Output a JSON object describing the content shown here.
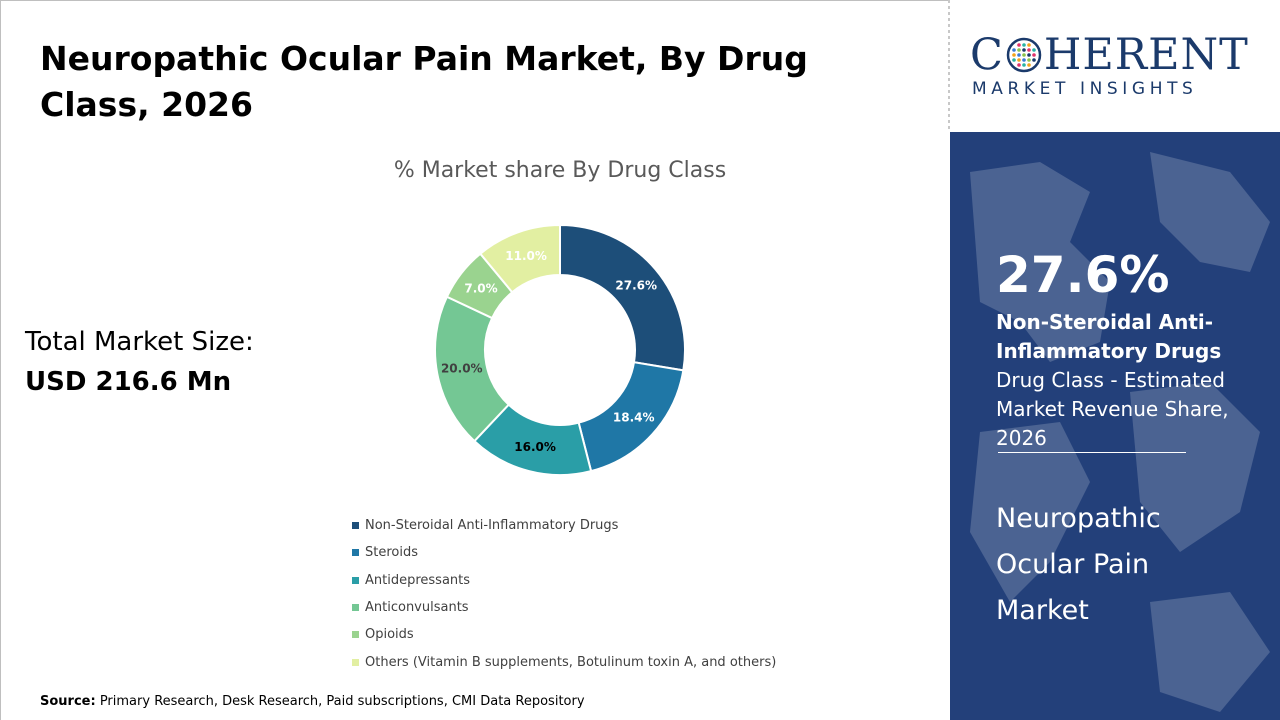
{
  "title": "Neuropathic Ocular Pain Market, By Drug Class, 2026",
  "total_market": {
    "label": "Total Market Size:",
    "value": "USD 216.6 Mn"
  },
  "source": {
    "label": "Source:",
    "text": " Primary Research, Desk Research, Paid subscriptions, CMI Data Repository"
  },
  "logo": {
    "main_left": "C",
    "main_right": "HERENT",
    "sub": "MARKET INSIGHTS"
  },
  "highlight": {
    "percent": "27.6%",
    "bold_text": "Non-Steroidal Anti-Inflammatory Drugs",
    "rest_text": " Drug Class - Estimated Market Revenue Share, 2026",
    "market_name": "Neuropathic Ocular Pain Market"
  },
  "colors": {
    "panel": "#23407a",
    "logo": "#1b3a6b"
  },
  "chart_data": {
    "type": "pie",
    "donut": true,
    "title": "% Market share By Drug Class",
    "legend_position": "bottom",
    "categories": [
      "Non-Steroidal Anti-Inflammatory Drugs",
      "Steroids",
      "Antidepressants",
      "Anticonvulsants",
      "Opioids",
      "Others (Vitamin B supplements, Botulinum toxin A, and others)"
    ],
    "values": [
      27.6,
      18.4,
      16.0,
      20.0,
      7.0,
      11.0
    ],
    "labels": [
      "27.6%",
      "18.4%",
      "16.0%",
      "20.0%",
      "7.0%",
      "11.0%"
    ],
    "colors": [
      "#1d4e79",
      "#1f77a6",
      "#2a9ea7",
      "#74c794",
      "#9ad38f",
      "#e2efa2"
    ],
    "label_colors": [
      "#ffffff",
      "#ffffff",
      "#000000",
      "#404040",
      "#ffffff",
      "#ffffff"
    ]
  }
}
